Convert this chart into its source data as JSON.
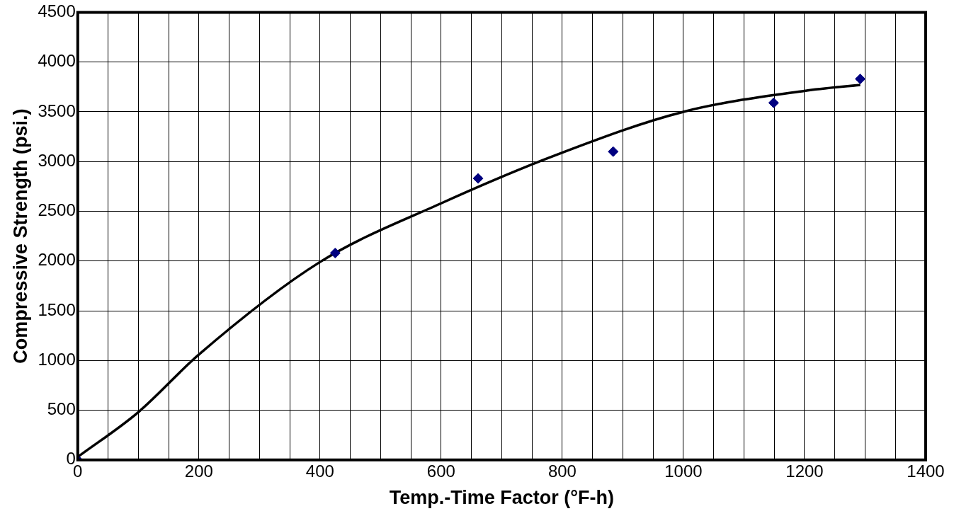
{
  "chart_data": {
    "type": "scatter",
    "xlabel": "Temp.-Time Factor (°F-h)",
    "ylabel": "Compressive Strength (psi.)",
    "xlim": [
      0,
      1400
    ],
    "ylim": [
      0,
      4500
    ],
    "xticks": [
      0,
      {
        "value": 50,
        "label": null
      },
      {
        "value": 100,
        "label": null
      },
      {
        "value": 150,
        "label": null
      },
      200,
      {
        "value": 250,
        "label": null
      },
      {
        "value": 300,
        "label": null
      },
      {
        "value": 350,
        "label": null
      },
      400,
      {
        "value": 450,
        "label": null
      },
      {
        "value": 500,
        "label": null
      },
      {
        "value": 550,
        "label": null
      },
      600,
      {
        "value": 650,
        "label": null
      },
      {
        "value": 700,
        "label": null
      },
      {
        "value": 750,
        "label": null
      },
      800,
      {
        "value": 850,
        "label": null
      },
      {
        "value": 900,
        "label": null
      },
      {
        "value": 950,
        "label": null
      },
      1000,
      {
        "value": 1050,
        "label": null
      },
      {
        "value": 1100,
        "label": null
      },
      {
        "value": 1150,
        "label": null
      },
      1200,
      {
        "value": 1250,
        "label": null
      },
      {
        "value": 1300,
        "label": null
      },
      {
        "value": 1350,
        "label": null
      },
      1400
    ],
    "yticks": [
      0,
      500,
      1000,
      1500,
      2000,
      2500,
      3000,
      3500,
      4000,
      4500
    ],
    "grid": true,
    "legend": false,
    "marker": "diamond",
    "series": [
      {
        "type": "scatter",
        "color": "#000080",
        "x": [
          0,
          425,
          661,
          884,
          1149,
          1292
        ],
        "values": [
          0,
          2080,
          2830,
          3100,
          3590,
          3830
        ]
      },
      {
        "type": "line",
        "color": "#000000",
        "marker": "none",
        "line_style": "solid",
        "x": [
          0,
          100,
          200,
          400,
          600,
          800,
          1000,
          1200,
          1292
        ],
        "values": [
          30,
          480,
          1060,
          1990,
          2580,
          3090,
          3500,
          3710,
          3770
        ]
      }
    ]
  }
}
